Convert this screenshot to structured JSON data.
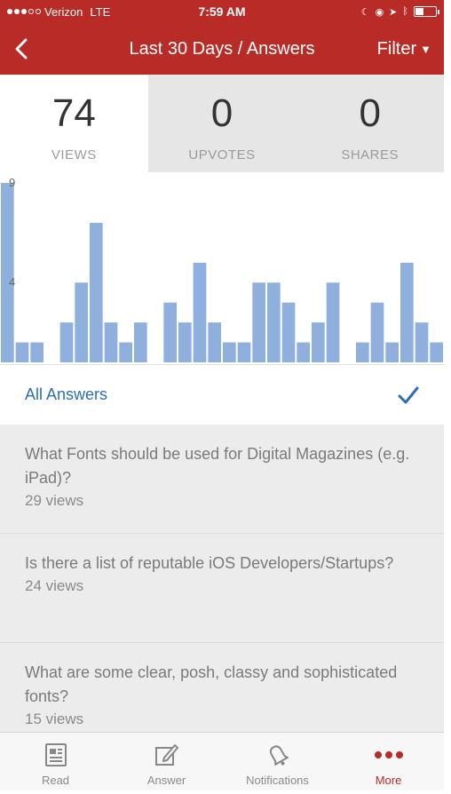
{
  "status_bar": {
    "carrier": "Verizon",
    "network": "LTE",
    "time": "7:59 AM"
  },
  "nav": {
    "title": "Last 30 Days / Answers",
    "filter_label": "Filter"
  },
  "stats": [
    {
      "value": "74",
      "label": "VIEWS",
      "active": true
    },
    {
      "value": "0",
      "label": "UPVOTES",
      "active": false
    },
    {
      "value": "0",
      "label": "SHARES",
      "active": false
    }
  ],
  "chart_data": {
    "type": "bar",
    "ylim": [
      0,
      9
    ],
    "y_ticks": [
      "9",
      "4"
    ],
    "values": [
      9,
      1,
      1,
      null,
      2,
      4,
      7,
      2,
      1,
      2,
      null,
      3,
      2,
      5,
      2,
      1,
      1,
      4,
      4,
      3,
      1,
      2,
      4,
      null,
      1,
      3,
      1,
      5,
      2,
      1
    ],
    "color": "#8fb0dd"
  },
  "filter_row": {
    "label": "All Answers"
  },
  "answers": [
    {
      "title": "What Fonts should be used for Digital Magazines (e.g. iPad)?",
      "views": "29 views"
    },
    {
      "title": "Is there a list of reputable iOS Developers/Startups?",
      "views": "24 views"
    },
    {
      "title": "What are some clear, posh, classy and sophisticated fonts?",
      "views": "15 views"
    }
  ],
  "tabs": [
    {
      "label": "Read",
      "icon": "read-icon"
    },
    {
      "label": "Answer",
      "icon": "answer-icon"
    },
    {
      "label": "Notifications",
      "icon": "notifications-icon"
    },
    {
      "label": "More",
      "icon": "more-icon",
      "active": true
    }
  ],
  "colors": {
    "brand": "#b92b27",
    "link": "#2b6fb6",
    "bar": "#8fb0dd"
  }
}
